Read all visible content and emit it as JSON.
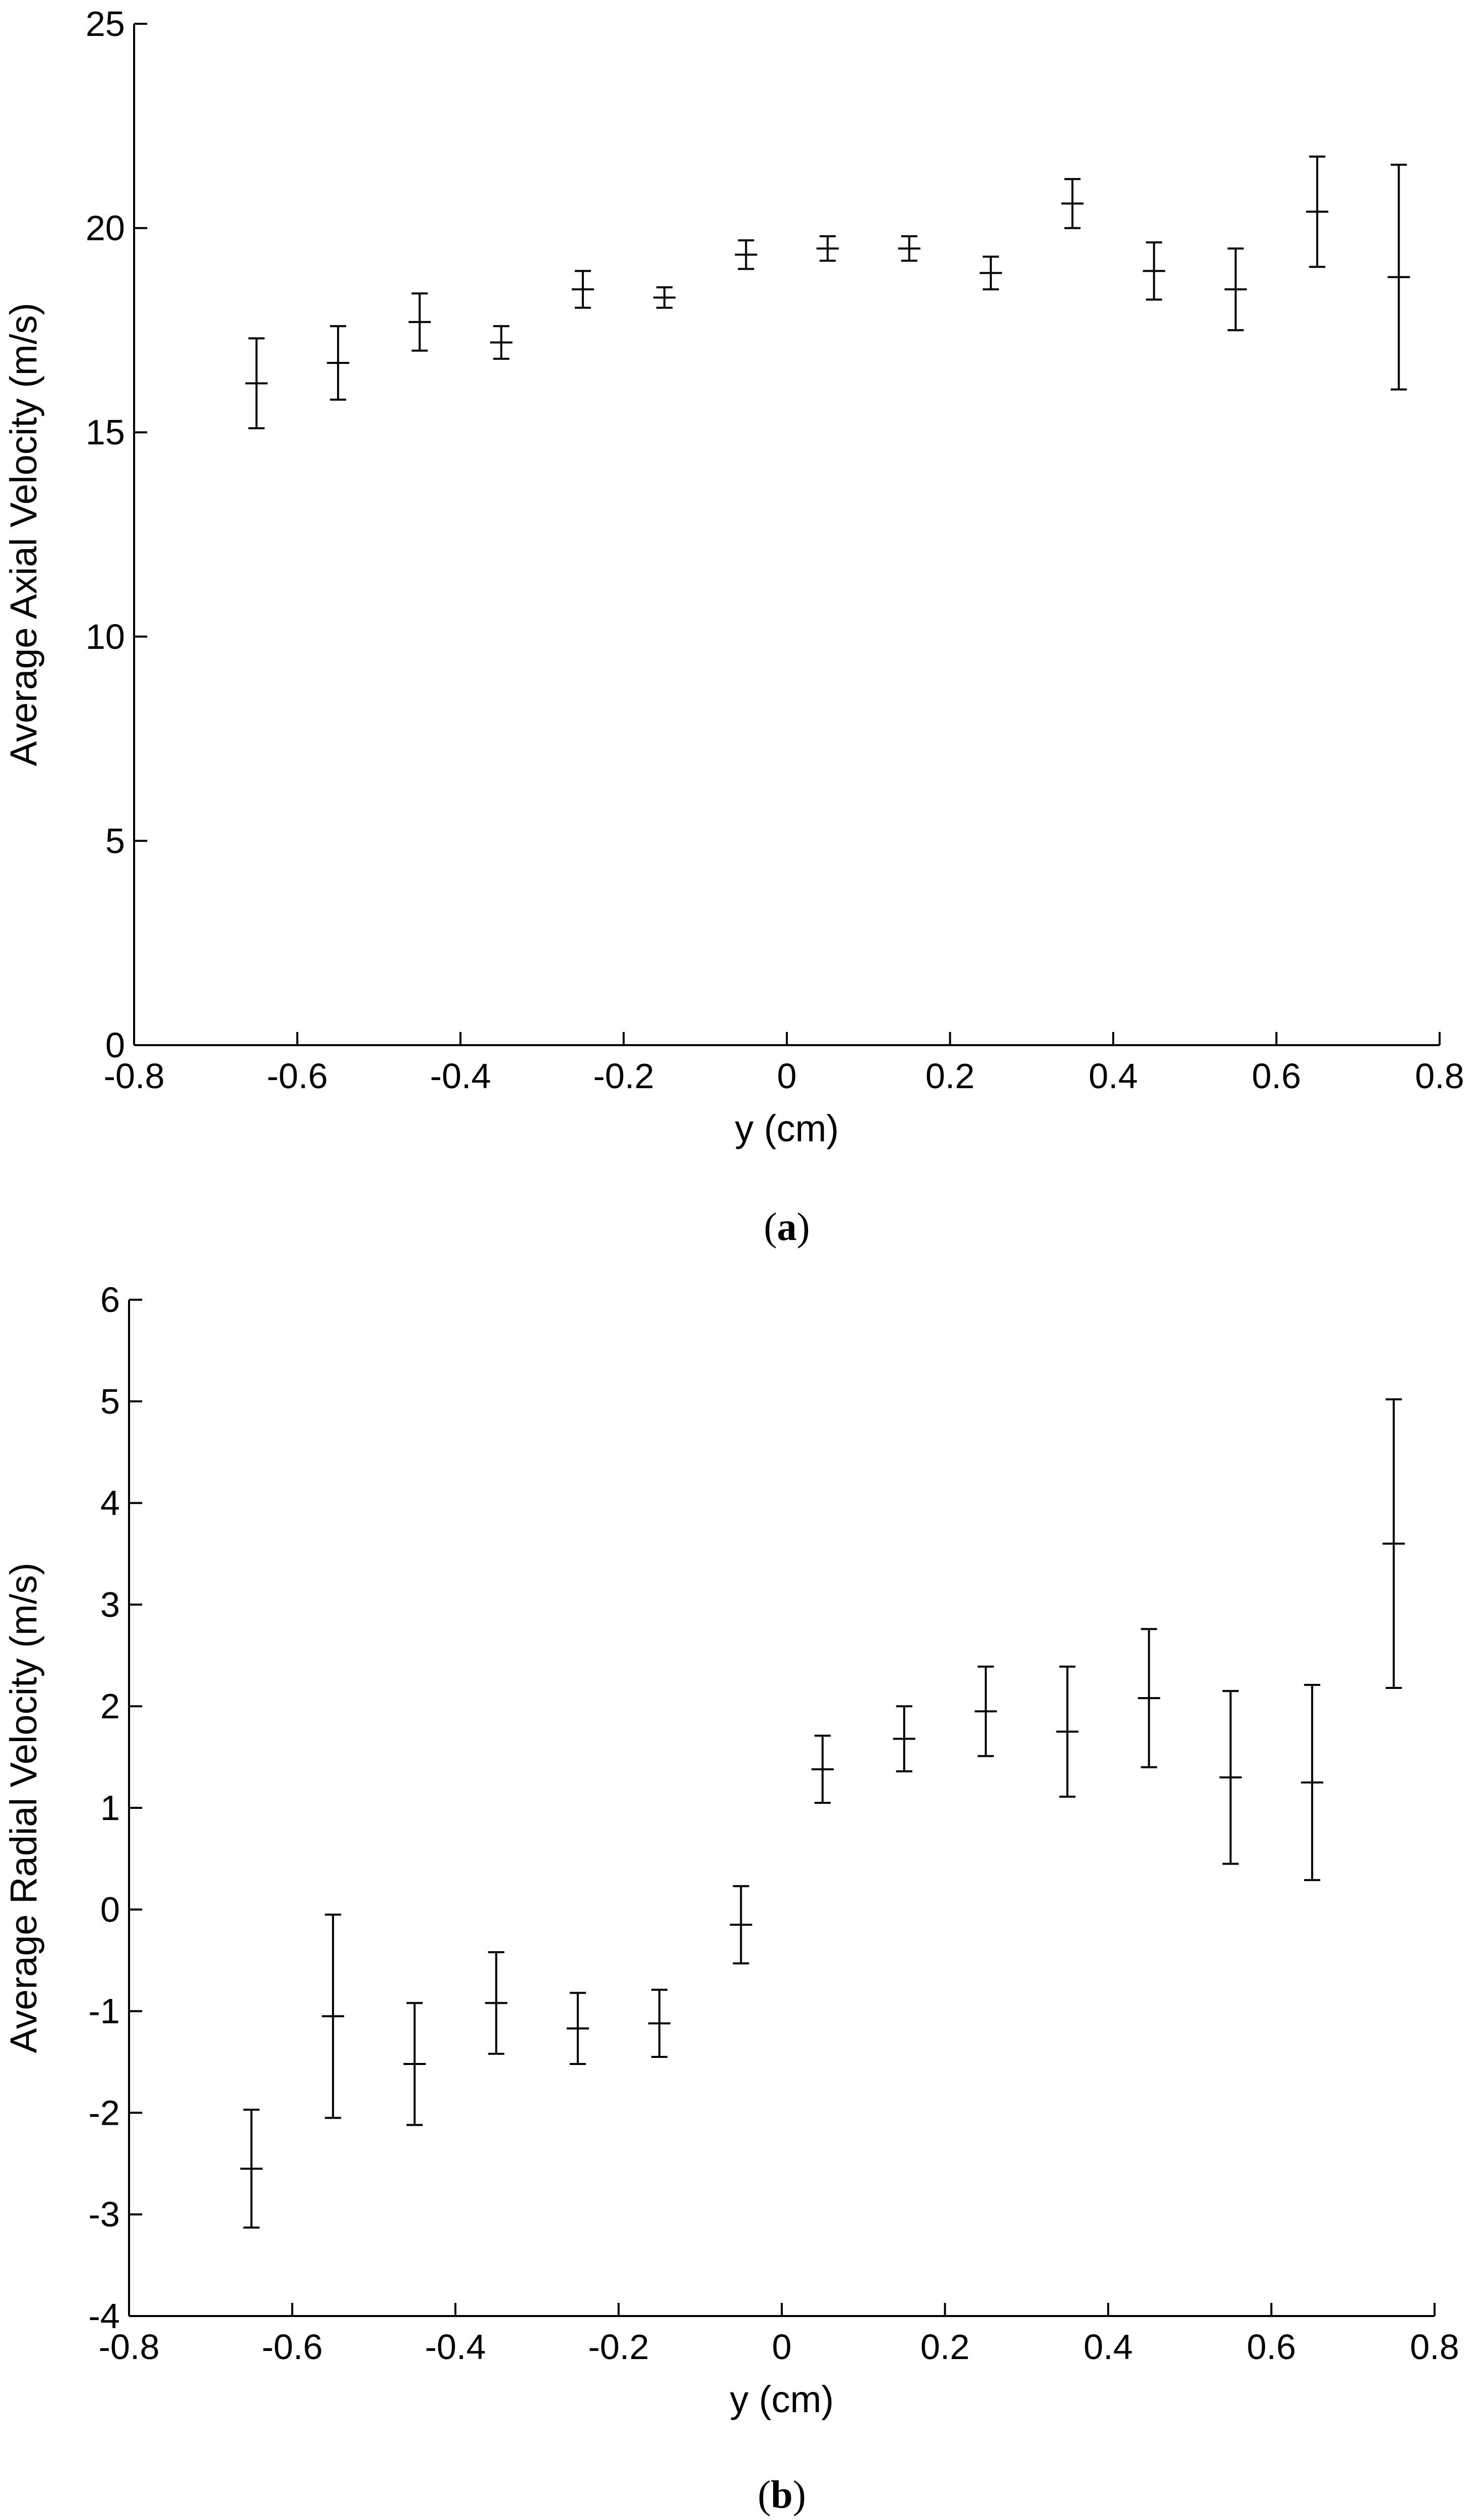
{
  "chart_data": [
    {
      "type": "scatter",
      "caption": {
        "open": "(",
        "letter": "a",
        "close": ")"
      },
      "xlabel": "y (cm)",
      "ylabel": "Average Axial Velocity (m/s)",
      "xlim": [
        -0.8,
        0.8
      ],
      "ylim": [
        0,
        25
      ],
      "xticks": [
        "-0.8",
        "-0.6",
        "-0.4",
        "-0.2",
        "0",
        "0.2",
        "0.4",
        "0.6",
        "0.8"
      ],
      "yticks": [
        "0",
        "5",
        "10",
        "15",
        "20",
        "25"
      ],
      "grid": false,
      "points": [
        {
          "x": -0.65,
          "y": 16.2,
          "err": 1.1
        },
        {
          "x": -0.55,
          "y": 16.7,
          "err": 0.9
        },
        {
          "x": -0.45,
          "y": 17.7,
          "err": 0.7
        },
        {
          "x": -0.35,
          "y": 17.2,
          "err": 0.4
        },
        {
          "x": -0.25,
          "y": 18.5,
          "err": 0.45
        },
        {
          "x": -0.15,
          "y": 18.3,
          "err": 0.25
        },
        {
          "x": -0.05,
          "y": 19.35,
          "err": 0.35
        },
        {
          "x": 0.05,
          "y": 19.5,
          "err": 0.3
        },
        {
          "x": 0.15,
          "y": 19.5,
          "err": 0.3
        },
        {
          "x": 0.25,
          "y": 18.9,
          "err": 0.4
        },
        {
          "x": 0.35,
          "y": 20.6,
          "err": 0.6
        },
        {
          "x": 0.45,
          "y": 18.95,
          "err": 0.7
        },
        {
          "x": 0.55,
          "y": 18.5,
          "err": 1.0
        },
        {
          "x": 0.65,
          "y": 20.4,
          "err": 1.35
        },
        {
          "x": 0.75,
          "y": 18.8,
          "err": 2.75
        }
      ]
    },
    {
      "type": "scatter",
      "caption": {
        "open": "(",
        "letter": "b",
        "close": ")"
      },
      "xlabel": "y (cm)",
      "ylabel": "Average Radial Velocity (m/s)",
      "xlim": [
        -0.8,
        0.8
      ],
      "ylim": [
        -4,
        6
      ],
      "xticks": [
        "-0.8",
        "-0.6",
        "-0.4",
        "-0.2",
        "0",
        "0.2",
        "0.4",
        "0.6",
        "0.8"
      ],
      "yticks": [
        "-4",
        "-3",
        "-2",
        "-1",
        "0",
        "1",
        "2",
        "3",
        "4",
        "5",
        "6"
      ],
      "grid": false,
      "points": [
        {
          "x": -0.65,
          "y": -2.55,
          "err": 0.58
        },
        {
          "x": -0.55,
          "y": -1.05,
          "err": 1.0
        },
        {
          "x": -0.45,
          "y": -1.52,
          "err": 0.6
        },
        {
          "x": -0.35,
          "y": -0.92,
          "err": 0.5
        },
        {
          "x": -0.25,
          "y": -1.17,
          "err": 0.35
        },
        {
          "x": -0.15,
          "y": -1.12,
          "err": 0.33
        },
        {
          "x": -0.05,
          "y": -0.15,
          "err": 0.38
        },
        {
          "x": 0.05,
          "y": 1.38,
          "err": 0.33
        },
        {
          "x": 0.15,
          "y": 1.68,
          "err": 0.32
        },
        {
          "x": 0.25,
          "y": 1.95,
          "err": 0.44
        },
        {
          "x": 0.35,
          "y": 1.75,
          "err": 0.64
        },
        {
          "x": 0.45,
          "y": 2.08,
          "err": 0.68
        },
        {
          "x": 0.55,
          "y": 1.3,
          "err": 0.85
        },
        {
          "x": 0.65,
          "y": 1.25,
          "err": 0.96
        },
        {
          "x": 0.75,
          "y": 3.6,
          "err": 1.42
        }
      ]
    }
  ]
}
